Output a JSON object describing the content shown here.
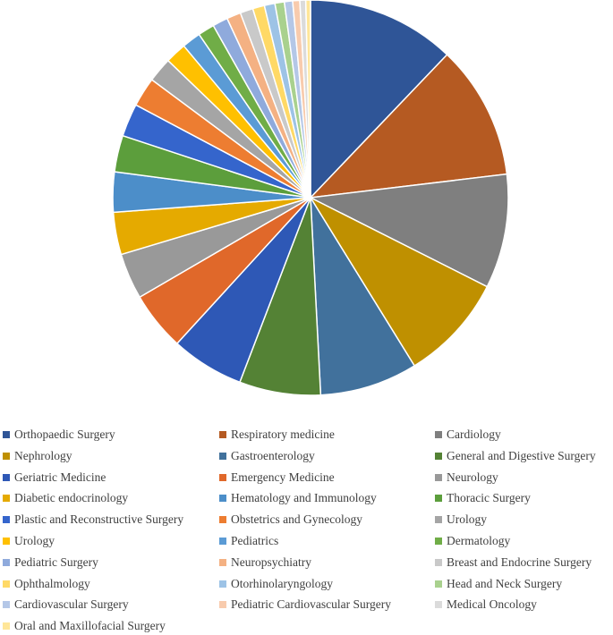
{
  "chart_data": {
    "type": "pie",
    "title": "",
    "legend_position": "bottom",
    "start_angle_deg": 0,
    "direction": "clockwise",
    "slices": [
      {
        "label": "Orthopaedic Surgery",
        "value": 12.6,
        "color": "#2f5597"
      },
      {
        "label": "Respiratory medicine",
        "value": 11.4,
        "color": "#b55a22"
      },
      {
        "label": "Cardiology",
        "value": 9.7,
        "color": "#7f7f7f"
      },
      {
        "label": "Nephrology",
        "value": 9.1,
        "color": "#bf9000"
      },
      {
        "label": "Gastroenterology",
        "value": 8.3,
        "color": "#41719c"
      },
      {
        "label": "General and Digestive Surgery",
        "value": 6.9,
        "color": "#548235"
      },
      {
        "label": "Geriatric Medicine",
        "value": 6.2,
        "color": "#2e58b6"
      },
      {
        "label": "Emergency Medicine",
        "value": 5.0,
        "color": "#e0682a"
      },
      {
        "label": "Neurology",
        "value": 3.9,
        "color": "#999999"
      },
      {
        "label": "Diabetic endocrinology",
        "value": 3.6,
        "color": "#e5aa00"
      },
      {
        "label": "Hematology and Immunology",
        "value": 3.4,
        "color": "#4c8ec9"
      },
      {
        "label": "Thoracic Surgery",
        "value": 3.1,
        "color": "#5c9e3c"
      },
      {
        "label": "Plastic and Reconstructive Surgery",
        "value": 2.8,
        "color": "#3565cc"
      },
      {
        "label": "Obstetrics and Gynecology",
        "value": 2.5,
        "color": "#ed7d31"
      },
      {
        "label": "Urology",
        "value": 2.1,
        "color": "#a5a5a5"
      },
      {
        "label": "Urology",
        "value": 1.8,
        "color": "#ffc000"
      },
      {
        "label": "Pediatrics",
        "value": 1.6,
        "color": "#5b9bd5"
      },
      {
        "label": "Dermatology",
        "value": 1.4,
        "color": "#70ad47"
      },
      {
        "label": "Pediatric Surgery",
        "value": 1.3,
        "color": "#8faadc"
      },
      {
        "label": "Neuropsychiatry",
        "value": 1.2,
        "color": "#f4b183"
      },
      {
        "label": "Breast and Endocrine Surgery",
        "value": 1.1,
        "color": "#c9c9c9"
      },
      {
        "label": "Ophthalmology",
        "value": 1.0,
        "color": "#ffd966"
      },
      {
        "label": "Otorhinolaryngology",
        "value": 0.9,
        "color": "#9dc3e6"
      },
      {
        "label": "Head and Neck Surgery",
        "value": 0.8,
        "color": "#a9d18e"
      },
      {
        "label": "Cardiovascular Surgery",
        "value": 0.7,
        "color": "#b4c7e7"
      },
      {
        "label": "Pediatric Cardiovascular Surgery",
        "value": 0.6,
        "color": "#f8cbad"
      },
      {
        "label": "Medical Oncology",
        "value": 0.5,
        "color": "#dbdbdb"
      },
      {
        "label": "Oral and Maxillofacial Surgery",
        "value": 0.4,
        "color": "#ffe699"
      }
    ]
  }
}
